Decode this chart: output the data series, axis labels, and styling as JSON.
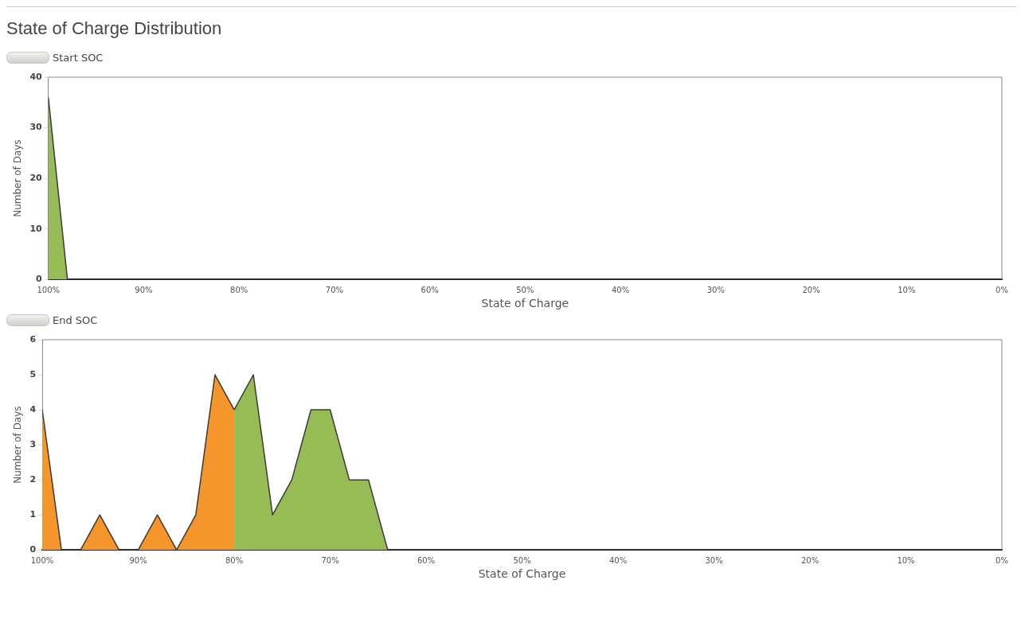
{
  "chart_data": [
    {
      "type": "area",
      "title": "State of Charge Distribution",
      "subtitle": "Start SOC",
      "xlabel": "State of Charge",
      "ylabel": "Number of Days",
      "xlim": [
        100,
        0
      ],
      "xticks": [
        {
          "value": 100,
          "label": "100%"
        },
        {
          "value": 90,
          "label": "90%"
        },
        {
          "value": 80,
          "label": "80%"
        },
        {
          "value": 70,
          "label": "70%"
        },
        {
          "value": 60,
          "label": "60%"
        },
        {
          "value": 50,
          "label": "50%"
        },
        {
          "value": 40,
          "label": "40%"
        },
        {
          "value": 30,
          "label": "30%"
        },
        {
          "value": 20,
          "label": "20%"
        },
        {
          "value": 10,
          "label": "10%"
        },
        {
          "value": 0,
          "label": "0%"
        }
      ],
      "ylim": [
        0,
        40
      ],
      "yticks": [
        0,
        10,
        20,
        30,
        40
      ],
      "grid": false,
      "legend": false,
      "series": [
        {
          "color": "#97bb55",
          "x": [
            100,
            98,
            96,
            94,
            92,
            90,
            88,
            86,
            84,
            82,
            80,
            78,
            76,
            74,
            72,
            70,
            68,
            66,
            64,
            62,
            60,
            58,
            56,
            54,
            52,
            50,
            48,
            46,
            44,
            42,
            40,
            38,
            36,
            34,
            32,
            30,
            28,
            26,
            24,
            22,
            20,
            18,
            16,
            14,
            12,
            10,
            8,
            6,
            4,
            2,
            0
          ],
          "values": [
            36,
            0,
            0,
            0,
            0,
            0,
            0,
            0,
            0,
            0,
            0,
            0,
            0,
            0,
            0,
            0,
            0,
            0,
            0,
            0,
            0,
            0,
            0,
            0,
            0,
            0,
            0,
            0,
            0,
            0,
            0,
            0,
            0,
            0,
            0,
            0,
            0,
            0,
            0,
            0,
            0,
            0,
            0,
            0,
            0,
            0,
            0,
            0,
            0,
            0,
            0
          ]
        }
      ]
    },
    {
      "type": "area",
      "subtitle": "End SOC",
      "xlabel": "State of Charge",
      "ylabel": "Number of Days",
      "xlim": [
        100,
        0
      ],
      "xticks": [
        {
          "value": 100,
          "label": "100%"
        },
        {
          "value": 90,
          "label": "90%"
        },
        {
          "value": 80,
          "label": "80%"
        },
        {
          "value": 70,
          "label": "70%"
        },
        {
          "value": 60,
          "label": "60%"
        },
        {
          "value": 50,
          "label": "50%"
        },
        {
          "value": 40,
          "label": "40%"
        },
        {
          "value": 30,
          "label": "30%"
        },
        {
          "value": 20,
          "label": "20%"
        },
        {
          "value": 10,
          "label": "10%"
        },
        {
          "value": 0,
          "label": "0%"
        }
      ],
      "ylim": [
        0,
        6
      ],
      "yticks": [
        0,
        1,
        2,
        3,
        4,
        5,
        6
      ],
      "grid": false,
      "legend": false,
      "series": [
        {
          "color": "#f4962c",
          "x": [
            100,
            98,
            96,
            94,
            92,
            90,
            88,
            86,
            84,
            82,
            80
          ],
          "values": [
            4,
            0,
            0,
            1,
            0,
            0,
            1,
            0,
            1,
            5,
            4
          ]
        },
        {
          "color": "#97bb55",
          "x": [
            80,
            78,
            76,
            74,
            72,
            70,
            68,
            66,
            64,
            62,
            60,
            58,
            56,
            54,
            52,
            50,
            48,
            46,
            44,
            42,
            40,
            38,
            36,
            34,
            32,
            30,
            28,
            26,
            24,
            22,
            20,
            18,
            16,
            14,
            12,
            10,
            8,
            6,
            4,
            2,
            0
          ],
          "values": [
            4,
            5,
            1,
            2,
            4,
            4,
            2,
            2,
            0,
            0,
            0,
            0,
            0,
            0,
            0,
            0,
            0,
            0,
            0,
            0,
            0,
            0,
            0,
            0,
            0,
            0,
            0,
            0,
            0,
            0,
            0,
            0,
            0,
            0,
            0,
            0,
            0,
            0,
            0,
            0,
            0
          ]
        }
      ]
    }
  ]
}
